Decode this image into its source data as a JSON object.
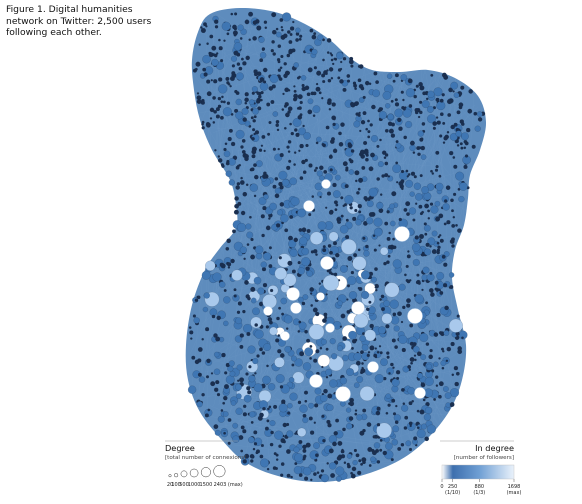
{
  "figure": {
    "caption": "Figure 1. Digital humanities network on Twitter: 2,500 users following each other."
  },
  "legend_degree": {
    "title": "Degree",
    "subtitle": "[total number of connexions]",
    "sizes": [
      {
        "value": 20,
        "label": "20"
      },
      {
        "value": 100,
        "label": "100"
      },
      {
        "value": 500,
        "label": "500"
      },
      {
        "value": 1000,
        "label": "1000"
      },
      {
        "value": 1500,
        "label": "1500"
      },
      {
        "value": 2403,
        "label": "2403 (max)"
      }
    ]
  },
  "legend_indegree": {
    "title": "In degree",
    "subtitle": "[number of followers]",
    "ticks": [
      {
        "value": 0,
        "label": "0",
        "sub": ""
      },
      {
        "value": 250,
        "label": "250",
        "sub": "(1/10)"
      },
      {
        "value": 880,
        "label": "880",
        "sub": "(1/3)"
      },
      {
        "value": 1698,
        "label": "1698",
        "sub": "(max)"
      }
    ],
    "max": 1698
  },
  "colors": {
    "node_dark": "#1a2f50",
    "node_mid": "#3f76b3",
    "node_light": "#a9c9ec",
    "node_max": "#ffffff",
    "edge": "#7aa3cf"
  }
}
